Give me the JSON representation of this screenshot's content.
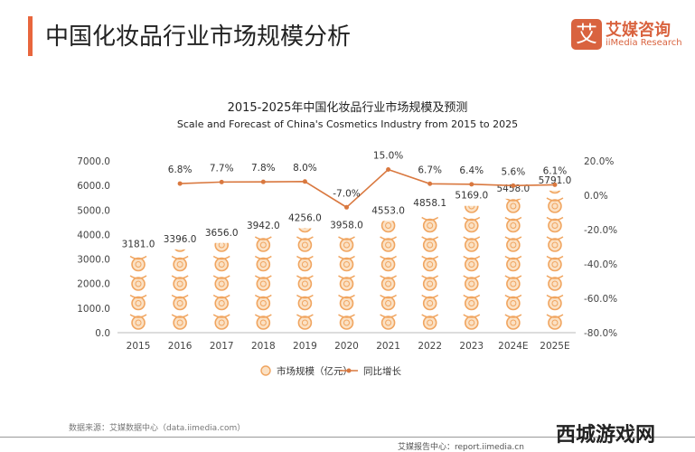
{
  "header": {
    "title": "中国化妆品行业市场规模分析",
    "logo_mark": "艾",
    "logo_cn": "艾媒咨询",
    "logo_en": "iiMedia Research"
  },
  "chart_data": {
    "type": "bar+line",
    "title": "2015-2025年中国化妆品行业市场规模及预测",
    "subtitle": "Scale and Forecast of China's Cosmetics Industry from 2015 to 2025",
    "categories": [
      "2015",
      "2016",
      "2017",
      "2018",
      "2019",
      "2020",
      "2021",
      "2022",
      "2023",
      "2024E",
      "2025E"
    ],
    "series": [
      {
        "name": "市场规模（亿元）",
        "type": "bar",
        "axis": "left",
        "values": [
          3181.0,
          3396.0,
          3656.0,
          3942.0,
          4256.0,
          3958.0,
          4553.0,
          4858.1,
          5169.0,
          5458.0,
          5791.0
        ]
      },
      {
        "name": "同比增长",
        "type": "line",
        "axis": "right",
        "values": [
          null,
          6.8,
          7.7,
          7.8,
          8.0,
          -7.0,
          15.0,
          6.7,
          6.4,
          5.6,
          6.1
        ]
      }
    ],
    "y_left": {
      "range": [
        0,
        7000
      ],
      "ticks": [
        "0.0",
        "1000.0",
        "2000.0",
        "3000.0",
        "4000.0",
        "5000.0",
        "6000.0",
        "7000.0"
      ]
    },
    "y_right": {
      "range": [
        -80,
        20
      ],
      "ticks": [
        "-80.0%",
        "-60.0%",
        "-40.0%",
        "-20.0%",
        "0.0%",
        "20.0%"
      ]
    },
    "legend_position": "bottom",
    "grid": false,
    "colors": {
      "bar": "#f0a560",
      "line": "#d9783f"
    }
  },
  "footer": {
    "source": "数据来源：艾媒数据中心（data.iimedia.com）",
    "report": "艾媒报告中心：report.iimedia.cn",
    "watermark": "西城游戏网"
  }
}
